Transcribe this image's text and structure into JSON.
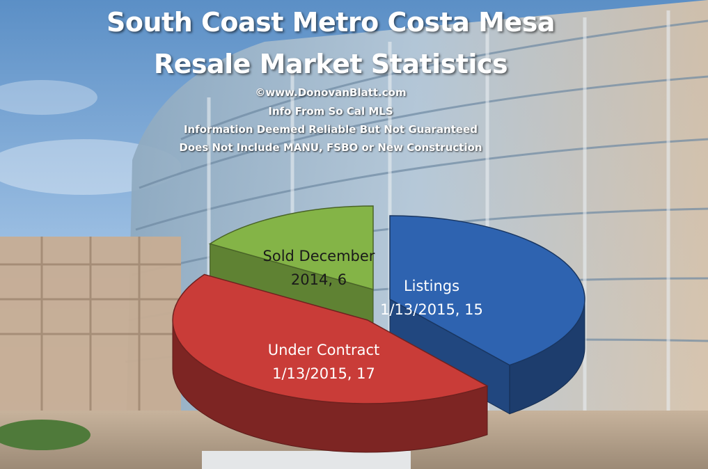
{
  "colors": {
    "sky_top": "#5f93c9",
    "sky_bottom": "#c3d9ee",
    "slice_blue": "#2e63b0",
    "slice_red": "#c93c38",
    "slice_green": "#84b447"
  },
  "header": {
    "title_line1": "South Coast Metro Costa Mesa",
    "title_line2": "Resale Market Statistics",
    "credit": "©www.DonovanBlatt.com",
    "source": "Info  From So Cal MLS",
    "disclaimer": "Information Deemed Reliable But Not Guaranteed",
    "exclusions": "Does Not Include MANU, FSBO or New Construction"
  },
  "chart_data": {
    "type": "pie",
    "title": "South Coast Metro Costa Mesa Resale Market Statistics",
    "style": "3d-exploded",
    "legend": "none",
    "slices": [
      {
        "label_lines": [
          "Listings",
          "1/13/2015, 15"
        ],
        "category": "Listings 1/13/2015",
        "value": 15,
        "color": "#2e63b0"
      },
      {
        "label_lines": [
          "Under Contract",
          "1/13/2015, 17"
        ],
        "category": "Under Contract 1/13/2015",
        "value": 17,
        "color": "#c93c38"
      },
      {
        "label_lines": [
          "Sold December",
          "2014, 6"
        ],
        "category": "Sold December 2014",
        "value": 6,
        "color": "#84b447"
      }
    ]
  }
}
